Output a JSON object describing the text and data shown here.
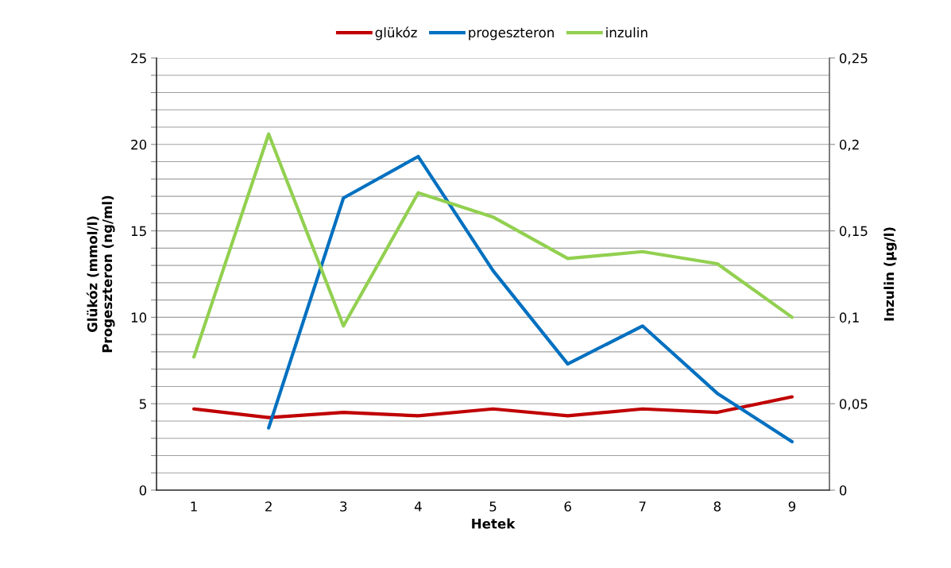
{
  "chart_data": {
    "type": "line",
    "xlabel": "Hetek",
    "ylabel": "Glükóz (mmol/l)\nProgeszteron (ng/ml)",
    "y2label": "Inzulin (µg/l)",
    "categories": [
      "1",
      "2",
      "3",
      "4",
      "5",
      "6",
      "7",
      "8",
      "9"
    ],
    "series": [
      {
        "name": "glükóz",
        "color": "#c00000",
        "values": [
          4.7,
          4.2,
          4.5,
          4.3,
          4.7,
          4.3,
          4.7,
          4.5,
          5.4
        ]
      },
      {
        "name": "progeszteron",
        "color": "#0070c0",
        "values": [
          null,
          3.6,
          16.9,
          19.3,
          12.7,
          7.3,
          9.5,
          5.6,
          2.8
        ]
      },
      {
        "name": "inzulin",
        "color": "#92d050",
        "axis": "y2",
        "values": [
          0.077,
          0.206,
          0.095,
          0.172,
          0.158,
          0.134,
          0.138,
          0.131,
          0.1
        ]
      }
    ],
    "ylim": [
      0,
      25
    ],
    "yticks": [
      0,
      {
        "value": 1,
        "label": null
      },
      {
        "value": 2,
        "label": null
      },
      {
        "value": 3,
        "label": null
      },
      {
        "value": 4,
        "label": null
      },
      5,
      {
        "value": 6,
        "label": null
      },
      {
        "value": 7,
        "label": null
      },
      {
        "value": 8,
        "label": null
      },
      {
        "value": 9,
        "label": null
      },
      10,
      {
        "value": 11,
        "label": null
      },
      {
        "value": 12,
        "label": null
      },
      {
        "value": 13,
        "label": null
      },
      {
        "value": 14,
        "label": null
      },
      15,
      {
        "value": 16,
        "label": null
      },
      {
        "value": 17,
        "label": null
      },
      {
        "value": 18,
        "label": null
      },
      {
        "value": 19,
        "label": null
      },
      20,
      {
        "value": 21,
        "label": null
      },
      {
        "value": 22,
        "label": null
      },
      {
        "value": 23,
        "label": null
      },
      {
        "value": 24,
        "label": null
      },
      25
    ],
    "y2lim": [
      0,
      0.25
    ],
    "y2ticks": [
      {
        "value": 0,
        "label": "0"
      },
      {
        "value": 0.05,
        "label": "0,05"
      },
      {
        "value": 0.1,
        "label": "0,1"
      },
      {
        "value": 0.15,
        "label": "0,15"
      },
      {
        "value": 0.2,
        "label": "0,2"
      },
      {
        "value": 0.25,
        "label": "0,25"
      }
    ],
    "grid": "y",
    "legend": "top",
    "marker": "none",
    "line_style": "solid"
  }
}
